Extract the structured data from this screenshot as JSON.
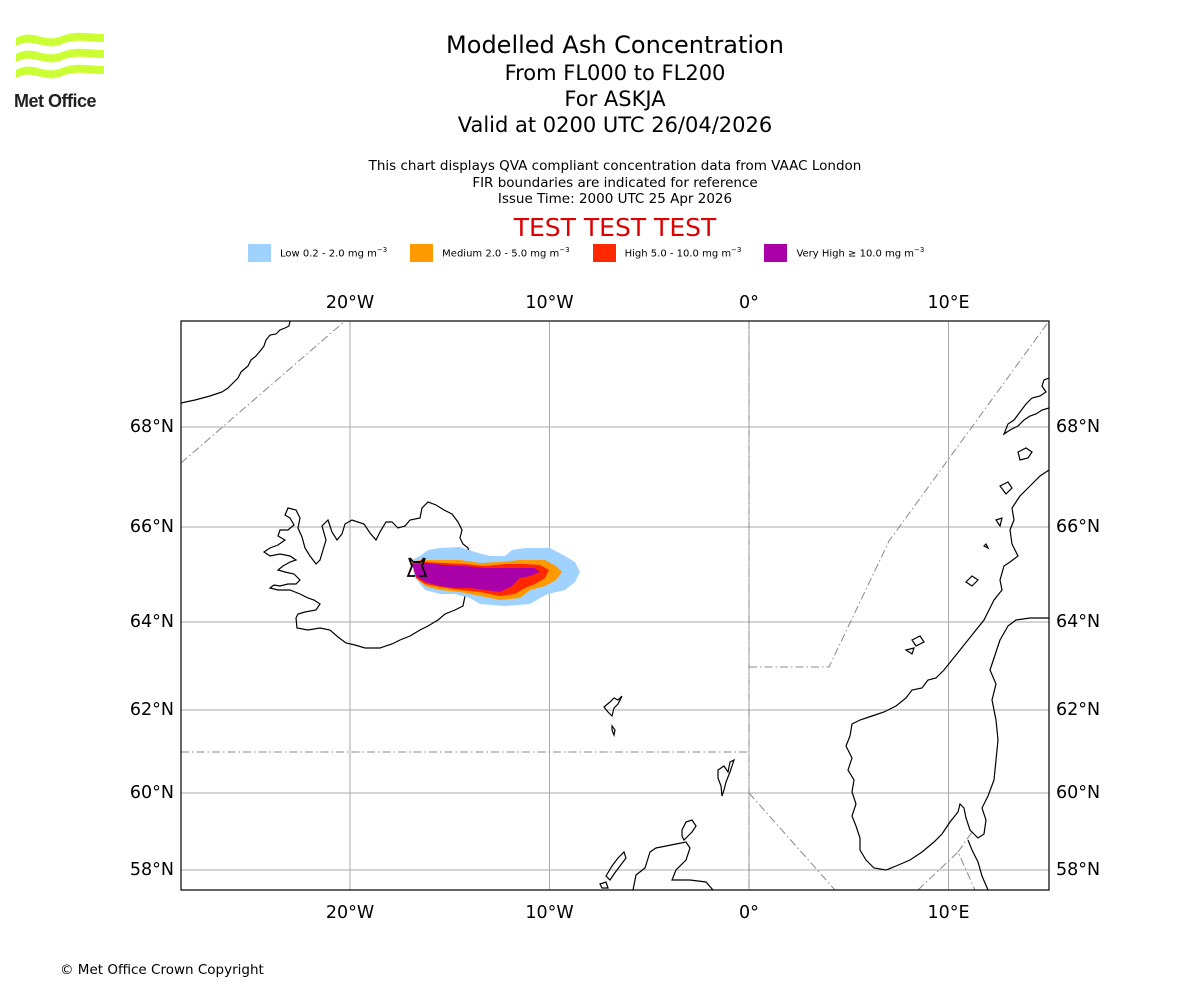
{
  "logo": {
    "brand": "Met Office",
    "icon": "met-office-wave-logo-icon",
    "color": "#ccff33"
  },
  "titles": {
    "main": "Modelled Ash Concentration",
    "levels": "From FL000 to FL200",
    "volcano": "For ASKJA",
    "valid": "Valid at 0200 UTC 26/04/2026"
  },
  "subtitles": {
    "line1": "This chart displays QVA compliant concentration data from VAAC London",
    "line2": "FIR boundaries are indicated for reference",
    "issue": "Issue Time: 2000 UTC 25 Apr 2026"
  },
  "banner": {
    "text": "TEST TEST TEST",
    "color": "#dd0000"
  },
  "legend": [
    {
      "label": "Low 0.2 - 2.0 mg m",
      "sup": "−3",
      "color": "#a0d2ff"
    },
    {
      "label": "Medium 2.0 - 5.0 mg m",
      "sup": "−3",
      "color": "#ff9900"
    },
    {
      "label": "High 5.0 - 10.0 mg m",
      "sup": "−3",
      "color": "#ff2800"
    },
    {
      "label": "Very High ≥ 10.0 mg m",
      "sup": "−3",
      "color": "#aa00aa"
    }
  ],
  "map": {
    "lon_range": [
      -28.5,
      15
    ],
    "lat_range": [
      57.7,
      70.4
    ],
    "lon_ticks": [
      {
        "value": -20,
        "label": "20°W"
      },
      {
        "value": -10,
        "label": "10°W"
      },
      {
        "value": 0,
        "label": "0°"
      },
      {
        "value": 10,
        "label": "10°E"
      }
    ],
    "lat_ticks": [
      {
        "value": 68,
        "label": "68°N"
      },
      {
        "value": 66,
        "label": "66°N"
      },
      {
        "value": 64,
        "label": "64°N"
      },
      {
        "value": 62,
        "label": "62°N"
      },
      {
        "value": 60,
        "label": "60°N"
      },
      {
        "value": 58,
        "label": "58°N"
      }
    ],
    "volcano": {
      "name": "ASKJA",
      "icon": "volcano-marker-icon"
    },
    "gridline_color": "#aaaaaa",
    "fir_color": "#888888"
  },
  "footer": {
    "copyright": "© Met Office Crown Copyright"
  }
}
